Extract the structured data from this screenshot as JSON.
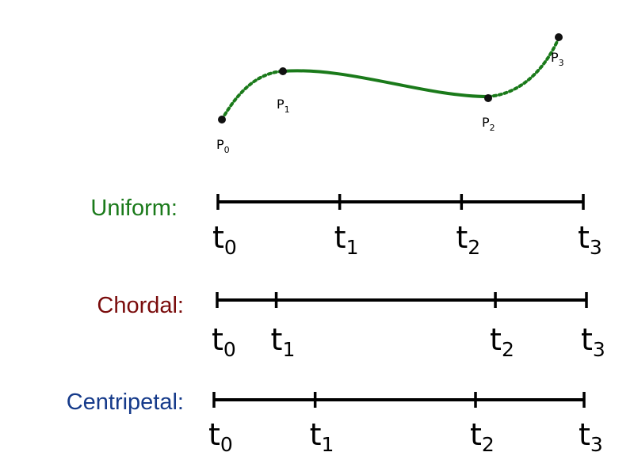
{
  "curve": {
    "color": "#1a7a1a",
    "points": [
      {
        "name": "P",
        "sub": "0"
      },
      {
        "name": "P",
        "sub": "1"
      },
      {
        "name": "P",
        "sub": "2"
      },
      {
        "name": "P",
        "sub": "3"
      }
    ]
  },
  "rows": [
    {
      "label": "Uniform:",
      "color": "#1a7a1a",
      "ticks": [
        {
          "name": "t",
          "sub": "0",
          "value": 0
        },
        {
          "name": "t",
          "sub": "1",
          "value": 1
        },
        {
          "name": "t",
          "sub": "2",
          "value": 2
        },
        {
          "name": "t",
          "sub": "3",
          "value": 3
        }
      ]
    },
    {
      "label": "Chordal:",
      "color": "#7a0c0c",
      "ticks": [
        {
          "name": "t",
          "sub": "0",
          "value": 0
        },
        {
          "name": "t",
          "sub": "1",
          "value": 0.48
        },
        {
          "name": "t",
          "sub": "2",
          "value": 2.26
        },
        {
          "name": "t",
          "sub": "3",
          "value": 3
        }
      ]
    },
    {
      "label": "Centripetal:",
      "color": "#153a8a",
      "ticks": [
        {
          "name": "t",
          "sub": "0",
          "value": 0
        },
        {
          "name": "t",
          "sub": "1",
          "value": 0.82
        },
        {
          "name": "t",
          "sub": "2",
          "value": 2.12
        },
        {
          "name": "t",
          "sub": "3",
          "value": 3
        }
      ]
    }
  ]
}
